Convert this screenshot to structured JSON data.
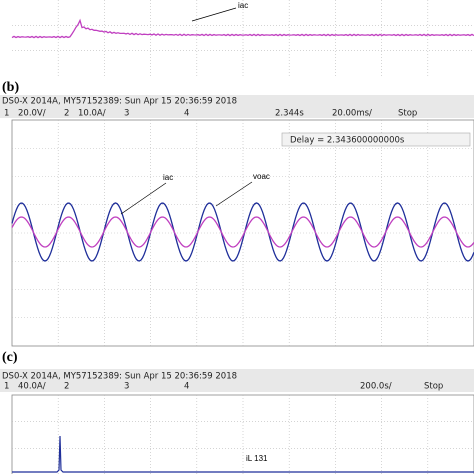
{
  "panel_a": {
    "annotation": "iac"
  },
  "panel_b": {
    "label": "(b)",
    "header": "DS0-X 2014A, MY57152389: Sun Apr 15 20:36:59 2018",
    "channels": [
      {
        "num": "1",
        "scale": "20.0V/"
      },
      {
        "num": "2",
        "scale": "10.0A/"
      },
      {
        "num": "3",
        "scale": ""
      },
      {
        "num": "4",
        "scale": ""
      }
    ],
    "delay_readout": "2.344s",
    "timebase": "20.00ms/",
    "status": "Stop",
    "delay_box": "Delay = 2.343600000000s",
    "annotations": [
      "iac",
      "voac"
    ]
  },
  "panel_c": {
    "label": "(c)",
    "header": "DS0-X 2014A, MY57152389: Sun Apr 15 20:36:59 2018",
    "channels": [
      {
        "num": "1",
        "scale": "40.0A/"
      },
      {
        "num": "2",
        "scale": ""
      },
      {
        "num": "3",
        "scale": ""
      },
      {
        "num": "4",
        "scale": ""
      }
    ],
    "timebase": "200.0s/",
    "status": "Stop",
    "annotation": "iL 131"
  }
}
